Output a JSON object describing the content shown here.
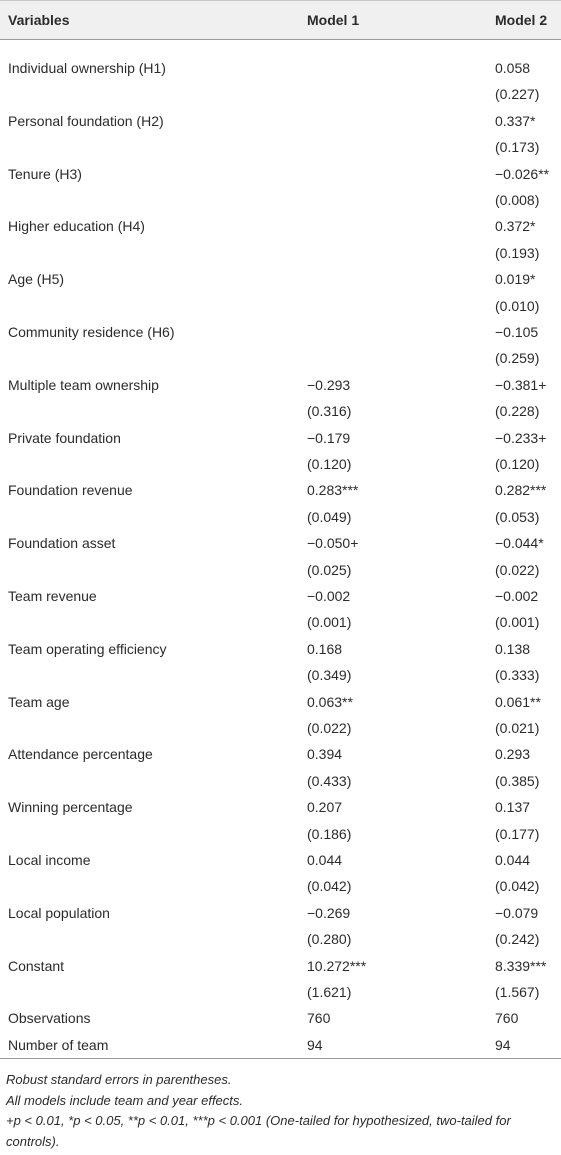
{
  "table": {
    "columns": [
      "Variables",
      "Model 1",
      "Model 2"
    ],
    "rows": [
      {
        "label": "Individual ownership (H1)",
        "model_1": null,
        "model_2": [
          "0.058",
          "(0.227)"
        ]
      },
      {
        "label": "Personal foundation (H2)",
        "model_1": null,
        "model_2": [
          "0.337*",
          "(0.173)"
        ]
      },
      {
        "label": "Tenure (H3)",
        "model_1": null,
        "model_2": [
          "−0.026**",
          "(0.008)"
        ]
      },
      {
        "label": "Higher education (H4)",
        "model_1": null,
        "model_2": [
          "0.372*",
          "(0.193)"
        ]
      },
      {
        "label": "Age (H5)",
        "model_1": null,
        "model_2": [
          "0.019*",
          "(0.010)"
        ]
      },
      {
        "label": "Community residence (H6)",
        "model_1": null,
        "model_2": [
          "−0.105",
          "(0.259)"
        ]
      },
      {
        "label": "Multiple team ownership",
        "model_1": [
          "−0.293",
          "(0.316)"
        ],
        "model_2": [
          "−0.381+",
          "(0.228)"
        ]
      },
      {
        "label": "Private foundation",
        "model_1": [
          "−0.179",
          "(0.120)"
        ],
        "model_2": [
          "−0.233+",
          "(0.120)"
        ]
      },
      {
        "label": "Foundation revenue",
        "model_1": [
          "0.283***",
          "(0.049)"
        ],
        "model_2": [
          "0.282***",
          "(0.053)"
        ]
      },
      {
        "label": "Foundation asset",
        "model_1": [
          "−0.050+",
          "(0.025)"
        ],
        "model_2": [
          "−0.044*",
          "(0.022)"
        ]
      },
      {
        "label": "Team revenue",
        "model_1": [
          "−0.002",
          "(0.001)"
        ],
        "model_2": [
          "−0.002",
          "(0.001)"
        ]
      },
      {
        "label": "Team operating efficiency",
        "model_1": [
          "0.168",
          "(0.349)"
        ],
        "model_2": [
          "0.138",
          "(0.333)"
        ]
      },
      {
        "label": "Team age",
        "model_1": [
          "0.063**",
          "(0.022)"
        ],
        "model_2": [
          "0.061**",
          "(0.021)"
        ]
      },
      {
        "label": "Attendance percentage",
        "model_1": [
          "0.394",
          "(0.433)"
        ],
        "model_2": [
          "0.293",
          "(0.385)"
        ]
      },
      {
        "label": "Winning percentage",
        "model_1": [
          "0.207",
          "(0.186)"
        ],
        "model_2": [
          "0.137",
          "(0.177)"
        ]
      },
      {
        "label": "Local income",
        "model_1": [
          "0.044",
          "(0.042)"
        ],
        "model_2": [
          "0.044",
          "(0.042)"
        ]
      },
      {
        "label": "Local population",
        "model_1": [
          "−0.269",
          "(0.280)"
        ],
        "model_2": [
          "−0.079",
          "(0.242)"
        ]
      },
      {
        "label": "Constant",
        "model_1": [
          "10.272***",
          "(1.621)"
        ],
        "model_2": [
          "8.339***",
          "(1.567)"
        ]
      },
      {
        "label": "Observations",
        "model_1": [
          "760"
        ],
        "model_2": [
          "760"
        ]
      },
      {
        "label": "Number of team",
        "model_1": [
          "94"
        ],
        "model_2": [
          "94"
        ]
      }
    ],
    "notes": [
      "Robust standard errors in parentheses.",
      "All models include team and year effects.",
      "+p < 0.01, *p < 0.05, **p < 0.01, ***p < 0.001 (One-tailed for hypothesized, two-tailed for controls)."
    ]
  }
}
